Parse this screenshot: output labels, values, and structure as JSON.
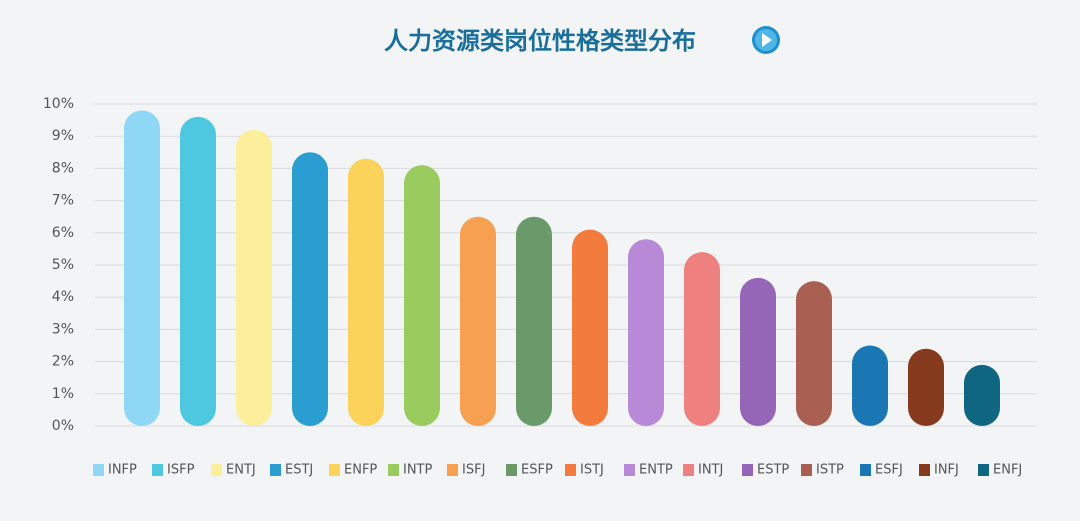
{
  "chart_data": {
    "type": "bar",
    "title": "人力资源类岗位性格类型分布",
    "categories": [
      "INFP",
      "ISFP",
      "ENTJ",
      "ESTJ",
      "ENFP",
      "INTP",
      "ISFJ",
      "ESFP",
      "ISTJ",
      "ENTP",
      "INTJ",
      "ESTP",
      "ISTP",
      "ESFJ",
      "INFJ",
      "ENFJ"
    ],
    "values": [
      9.8,
      9.6,
      9.2,
      8.5,
      8.3,
      8.1,
      6.5,
      6.5,
      6.1,
      5.8,
      5.4,
      4.6,
      4.5,
      2.5,
      2.4,
      1.9
    ],
    "colors": [
      "#8ed8f5",
      "#4ec8e0",
      "#fcef9c",
      "#2a9ed0",
      "#fbd35a",
      "#9acb5e",
      "#f7a051",
      "#6a9a6a",
      "#f27b3d",
      "#b789d6",
      "#ee8080",
      "#9566b7",
      "#a95f51",
      "#1a77b4",
      "#853a1e",
      "#0f6680"
    ],
    "ylim": [
      0,
      10
    ],
    "yticks": [
      {
        "value": 0,
        "label": "0%"
      },
      {
        "value": 1,
        "label": "1%"
      },
      {
        "value": 2,
        "label": "2%"
      },
      {
        "value": 3,
        "label": "3%"
      },
      {
        "value": 4,
        "label": "4%"
      },
      {
        "value": 5,
        "label": "5%"
      },
      {
        "value": 6,
        "label": "6%"
      },
      {
        "value": 7,
        "label": "7%"
      },
      {
        "value": 8,
        "label": "8%"
      },
      {
        "value": 9,
        "label": "9%"
      },
      {
        "value": 10,
        "label": "10%"
      }
    ],
    "grid": true,
    "legend": "bottom"
  }
}
